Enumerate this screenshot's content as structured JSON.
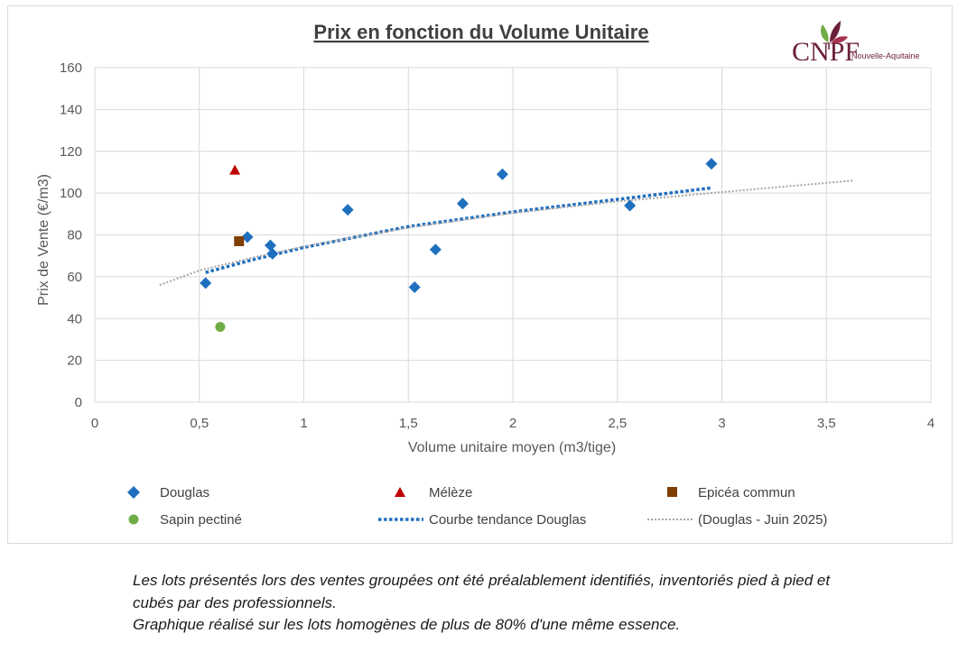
{
  "chart_data": {
    "type": "scatter",
    "title": "Prix en fonction du Volume Unitaire",
    "xlabel": "Volume unitaire moyen (m3/tige)",
    "ylabel": "Prix de Vente (€/m3)",
    "xlim": [
      0,
      4
    ],
    "ylim": [
      0,
      160
    ],
    "xticks": [
      0,
      0.5,
      1,
      1.5,
      2,
      2.5,
      3,
      3.5,
      4
    ],
    "xtick_labels": [
      "0",
      "0,5",
      "1",
      "1,5",
      "2",
      "2,5",
      "3",
      "3,5",
      "4"
    ],
    "yticks": [
      0,
      20,
      40,
      60,
      80,
      100,
      120,
      140,
      160
    ],
    "ytick_labels": [
      "0",
      "20",
      "40",
      "60",
      "80",
      "100",
      "120",
      "140",
      "160"
    ],
    "grid": true,
    "legend_position": "bottom",
    "series": [
      {
        "name": "Douglas",
        "marker": "diamond",
        "color": "#1f6fbf",
        "points": [
          [
            0.53,
            57
          ],
          [
            0.73,
            79
          ],
          [
            0.84,
            75
          ],
          [
            0.85,
            71
          ],
          [
            1.21,
            92
          ],
          [
            1.53,
            55
          ],
          [
            1.63,
            73
          ],
          [
            1.76,
            95
          ],
          [
            1.95,
            109
          ],
          [
            2.56,
            94
          ],
          [
            2.95,
            114
          ]
        ]
      },
      {
        "name": "Mélèze",
        "marker": "triangle",
        "color": "#c00000",
        "points": [
          [
            0.67,
            111
          ]
        ]
      },
      {
        "name": "Epicéa commun",
        "marker": "square",
        "color": "#7f3f00",
        "points": [
          [
            0.69,
            77
          ]
        ]
      },
      {
        "name": "Sapin pectiné",
        "marker": "circle",
        "color": "#70ad47",
        "points": [
          [
            0.6,
            36
          ]
        ]
      }
    ],
    "trendlines": [
      {
        "name": "Courbe tendance Douglas",
        "style": "dotted-thick",
        "color": "#1f6fbf",
        "x_range": [
          0.53,
          2.95
        ],
        "points": [
          [
            0.53,
            62
          ],
          [
            0.75,
            68
          ],
          [
            1.0,
            74
          ],
          [
            1.25,
            79
          ],
          [
            1.5,
            84
          ],
          [
            1.75,
            87.5
          ],
          [
            2.0,
            91
          ],
          [
            2.25,
            94
          ],
          [
            2.5,
            97
          ],
          [
            2.75,
            100
          ],
          [
            2.95,
            102.5
          ]
        ]
      },
      {
        "name": "(Douglas - Juin 2025)",
        "style": "dotted-thin",
        "color": "#a6a6a6",
        "x_range": [
          0.31,
          3.63
        ],
        "points": [
          [
            0.31,
            56
          ],
          [
            0.5,
            63
          ],
          [
            0.75,
            69
          ],
          [
            1.0,
            74.5
          ],
          [
            1.25,
            79
          ],
          [
            1.5,
            83.5
          ],
          [
            1.75,
            87
          ],
          [
            2.0,
            90.5
          ],
          [
            2.5,
            96
          ],
          [
            3.0,
            100.5
          ],
          [
            3.63,
            106
          ]
        ]
      }
    ]
  },
  "logo": {
    "main": "CNPF",
    "sub": "Nouvelle-Aquitaine"
  },
  "caption": {
    "line1": "Les lots présentés lors des ventes groupées ont été préalablement identifiés, inventoriés pied à pied et",
    "line2": "cubés par des professionnels.",
    "line3": "Graphique réalisé sur les lots homogènes de plus de 80% d'une même essence."
  },
  "colors": {
    "grid": "#d9d9d9",
    "douglas": "#1f6fbf",
    "meleze": "#c00000",
    "epicea": "#7f3f00",
    "sapin": "#70ad47",
    "trend_june": "#a6a6a6"
  }
}
